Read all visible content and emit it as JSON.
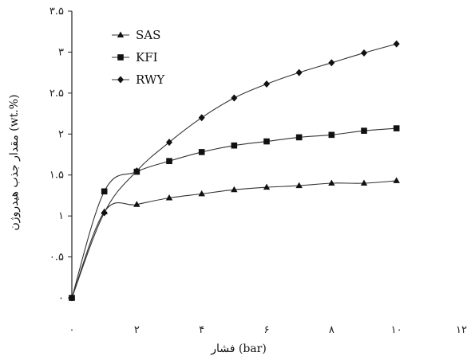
{
  "chart_data": {
    "type": "line",
    "xlabel": "فشار (bar)",
    "ylabel": "مقدار جذب هیدروژن (wt.%)",
    "xlim": [
      0,
      12
    ],
    "ylim": [
      0,
      3.5
    ],
    "x_ticks": [
      0,
      2,
      4,
      6,
      8,
      10,
      12
    ],
    "x_tick_labels": [
      "۰",
      "۲",
      "۴",
      "۶",
      "۸",
      "۱۰",
      "۱۲"
    ],
    "y_ticks": [
      0,
      0.5,
      1,
      1.5,
      2,
      2.5,
      3,
      3.5
    ],
    "y_tick_labels": [
      "۰",
      "۰.۵",
      "۱",
      "۱.۵",
      "۲",
      "۲.۵",
      "۳",
      "۳.۵"
    ],
    "grid": false,
    "legend_position": "top-left",
    "series": [
      {
        "name": "SAS",
        "marker": "triangle",
        "x": [
          0,
          1,
          2,
          3,
          4,
          5,
          6,
          7,
          8,
          9,
          10
        ],
        "y": [
          0,
          1.05,
          1.14,
          1.22,
          1.27,
          1.32,
          1.35,
          1.37,
          1.4,
          1.4,
          1.43
        ]
      },
      {
        "name": "KFI",
        "marker": "square",
        "x": [
          0,
          1,
          2,
          3,
          4,
          5,
          6,
          7,
          8,
          9,
          10
        ],
        "y": [
          0,
          1.3,
          1.54,
          1.67,
          1.78,
          1.86,
          1.91,
          1.96,
          1.99,
          2.04,
          2.07
        ]
      },
      {
        "name": "RWY",
        "marker": "diamond",
        "x": [
          0,
          1,
          2,
          3,
          4,
          5,
          6,
          7,
          8,
          9,
          10
        ],
        "y": [
          0,
          1.04,
          1.55,
          1.9,
          2.2,
          2.44,
          2.61,
          2.75,
          2.87,
          2.99,
          3.1
        ]
      }
    ]
  }
}
